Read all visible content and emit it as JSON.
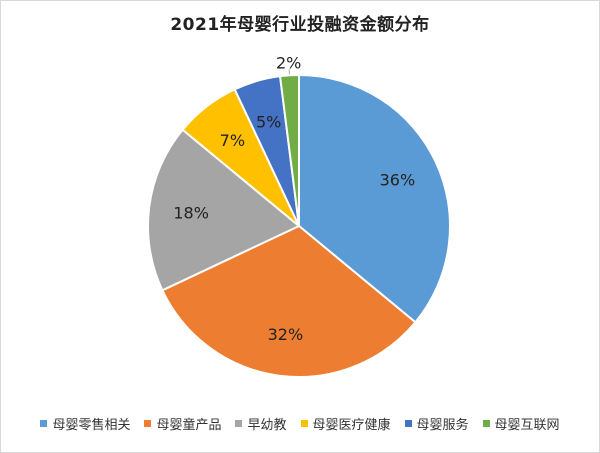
{
  "chart_data": {
    "type": "pie",
    "title": "2021年母婴行业投融资金额分布",
    "categories": [
      "母婴零售相关",
      "母婴童产品",
      "早幼教",
      "母婴医疗健康",
      "母婴服务",
      "母婴互联网"
    ],
    "values": [
      36,
      32,
      18,
      7,
      5,
      2
    ],
    "labels": [
      "36%",
      "32%",
      "18%",
      "7%",
      "5%",
      "2%"
    ],
    "colors": [
      "#5b9bd5",
      "#ed7d31",
      "#a5a5a5",
      "#ffc000",
      "#4472c4",
      "#70ad47"
    ],
    "legend_position": "bottom"
  }
}
